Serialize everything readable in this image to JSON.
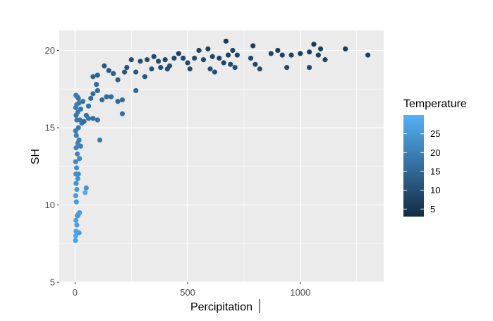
{
  "chart_data": {
    "type": "scatter",
    "title": "",
    "xlabel": "Percipitation",
    "ylabel": "SH",
    "xlim": [
      -70,
      1370
    ],
    "ylim": [
      5,
      21.3
    ],
    "xticks": [
      0,
      500,
      1000
    ],
    "yticks": [
      5,
      10,
      15,
      20
    ],
    "grid": true,
    "panel_background": "#ebebeb",
    "color_scale": {
      "variable": "Temperature",
      "low_color": "#132b43",
      "high_color": "#56b1f7",
      "min": 3,
      "max": 30,
      "breaks": [
        5,
        10,
        15,
        20,
        25
      ]
    },
    "legend_placement": "right",
    "points": [
      {
        "x": 2,
        "y": 7.7,
        "c": 27
      },
      {
        "x": 3,
        "y": 8.0,
        "c": 28
      },
      {
        "x": 5,
        "y": 8.3,
        "c": 27
      },
      {
        "x": 8,
        "y": 8.7,
        "c": 26
      },
      {
        "x": 4,
        "y": 9.0,
        "c": 27
      },
      {
        "x": 10,
        "y": 9.3,
        "c": 26
      },
      {
        "x": 15,
        "y": 9.4,
        "c": 27
      },
      {
        "x": 20,
        "y": 9.5,
        "c": 26
      },
      {
        "x": 12,
        "y": 9.3,
        "c": 25
      },
      {
        "x": 18,
        "y": 8.2,
        "c": 26
      },
      {
        "x": 6,
        "y": 10.2,
        "c": 25
      },
      {
        "x": 3,
        "y": 10.6,
        "c": 26
      },
      {
        "x": 8,
        "y": 11.0,
        "c": 25
      },
      {
        "x": 45,
        "y": 10.8,
        "c": 29
      },
      {
        "x": 50,
        "y": 11.1,
        "c": 24
      },
      {
        "x": 5,
        "y": 11.4,
        "c": 24
      },
      {
        "x": 12,
        "y": 11.7,
        "c": 24
      },
      {
        "x": 4,
        "y": 12.0,
        "c": 23
      },
      {
        "x": 15,
        "y": 12.0,
        "c": 23
      },
      {
        "x": 7,
        "y": 12.4,
        "c": 23
      },
      {
        "x": 3,
        "y": 12.8,
        "c": 22
      },
      {
        "x": 20,
        "y": 13.0,
        "c": 22
      },
      {
        "x": 10,
        "y": 13.3,
        "c": 21
      },
      {
        "x": 5,
        "y": 13.7,
        "c": 21
      },
      {
        "x": 25,
        "y": 13.8,
        "c": 20
      },
      {
        "x": 12,
        "y": 14.0,
        "c": 21
      },
      {
        "x": 18,
        "y": 14.2,
        "c": 20
      },
      {
        "x": 6,
        "y": 14.5,
        "c": 20
      },
      {
        "x": 3,
        "y": 14.8,
        "c": 19
      },
      {
        "x": 15,
        "y": 15.0,
        "c": 19
      },
      {
        "x": 30,
        "y": 15.3,
        "c": 18
      },
      {
        "x": 8,
        "y": 15.5,
        "c": 19
      },
      {
        "x": 22,
        "y": 15.5,
        "c": 18
      },
      {
        "x": 40,
        "y": 15.4,
        "c": 17
      },
      {
        "x": 5,
        "y": 15.8,
        "c": 18
      },
      {
        "x": 12,
        "y": 16.0,
        "c": 19
      },
      {
        "x": 25,
        "y": 16.2,
        "c": 18
      },
      {
        "x": 3,
        "y": 16.3,
        "c": 19
      },
      {
        "x": 8,
        "y": 16.5,
        "c": 20
      },
      {
        "x": 18,
        "y": 16.6,
        "c": 19
      },
      {
        "x": 35,
        "y": 16.7,
        "c": 18
      },
      {
        "x": 50,
        "y": 15.8,
        "c": 17
      },
      {
        "x": 60,
        "y": 15.6,
        "c": 18
      },
      {
        "x": 80,
        "y": 15.6,
        "c": 17
      },
      {
        "x": 100,
        "y": 15.5,
        "c": 17
      },
      {
        "x": 110,
        "y": 14.2,
        "c": 19
      },
      {
        "x": 10,
        "y": 17.0,
        "c": 19
      },
      {
        "x": 15,
        "y": 16.9,
        "c": 18
      },
      {
        "x": 4,
        "y": 17.1,
        "c": 19
      },
      {
        "x": 60,
        "y": 16.4,
        "c": 17
      },
      {
        "x": 70,
        "y": 16.9,
        "c": 16
      },
      {
        "x": 80,
        "y": 17.2,
        "c": 16
      },
      {
        "x": 100,
        "y": 17.4,
        "c": 15
      },
      {
        "x": 95,
        "y": 17.8,
        "c": 15
      },
      {
        "x": 80,
        "y": 18.3,
        "c": 14
      },
      {
        "x": 100,
        "y": 18.4,
        "c": 14
      },
      {
        "x": 120,
        "y": 16.8,
        "c": 16
      },
      {
        "x": 140,
        "y": 17.0,
        "c": 16
      },
      {
        "x": 160,
        "y": 17.0,
        "c": 16
      },
      {
        "x": 190,
        "y": 16.7,
        "c": 15
      },
      {
        "x": 210,
        "y": 16.8,
        "c": 16
      },
      {
        "x": 210,
        "y": 15.9,
        "c": 17
      },
      {
        "x": 130,
        "y": 19.0,
        "c": 12
      },
      {
        "x": 150,
        "y": 18.7,
        "c": 12
      },
      {
        "x": 170,
        "y": 18.5,
        "c": 13
      },
      {
        "x": 190,
        "y": 18.1,
        "c": 13
      },
      {
        "x": 220,
        "y": 18.6,
        "c": 12
      },
      {
        "x": 230,
        "y": 18.9,
        "c": 11
      },
      {
        "x": 250,
        "y": 19.4,
        "c": 10
      },
      {
        "x": 270,
        "y": 18.6,
        "c": 12
      },
      {
        "x": 270,
        "y": 17.4,
        "c": 15
      },
      {
        "x": 290,
        "y": 19.3,
        "c": 10
      },
      {
        "x": 310,
        "y": 18.3,
        "c": 12
      },
      {
        "x": 320,
        "y": 19.4,
        "c": 10
      },
      {
        "x": 340,
        "y": 18.8,
        "c": 11
      },
      {
        "x": 350,
        "y": 19.6,
        "c": 9
      },
      {
        "x": 370,
        "y": 19.3,
        "c": 9
      },
      {
        "x": 380,
        "y": 18.9,
        "c": 10
      },
      {
        "x": 400,
        "y": 19.4,
        "c": 9
      },
      {
        "x": 410,
        "y": 18.8,
        "c": 10
      },
      {
        "x": 420,
        "y": 19.0,
        "c": 10
      },
      {
        "x": 440,
        "y": 19.5,
        "c": 9
      },
      {
        "x": 460,
        "y": 19.8,
        "c": 8
      },
      {
        "x": 480,
        "y": 19.5,
        "c": 9
      },
      {
        "x": 500,
        "y": 19.2,
        "c": 9
      },
      {
        "x": 510,
        "y": 18.8,
        "c": 10
      },
      {
        "x": 530,
        "y": 19.5,
        "c": 9
      },
      {
        "x": 550,
        "y": 20.0,
        "c": 8
      },
      {
        "x": 570,
        "y": 19.4,
        "c": 9
      },
      {
        "x": 590,
        "y": 20.1,
        "c": 8
      },
      {
        "x": 600,
        "y": 18.8,
        "c": 10
      },
      {
        "x": 610,
        "y": 19.6,
        "c": 9
      },
      {
        "x": 620,
        "y": 18.6,
        "c": 10
      },
      {
        "x": 640,
        "y": 19.5,
        "c": 8
      },
      {
        "x": 660,
        "y": 19.2,
        "c": 8
      },
      {
        "x": 670,
        "y": 20.6,
        "c": 6
      },
      {
        "x": 680,
        "y": 19.7,
        "c": 7
      },
      {
        "x": 690,
        "y": 19.1,
        "c": 9
      },
      {
        "x": 700,
        "y": 20.0,
        "c": 8
      },
      {
        "x": 710,
        "y": 18.9,
        "c": 10
      },
      {
        "x": 720,
        "y": 19.7,
        "c": 8
      },
      {
        "x": 780,
        "y": 19.5,
        "c": 9
      },
      {
        "x": 790,
        "y": 20.3,
        "c": 7
      },
      {
        "x": 800,
        "y": 19.1,
        "c": 9
      },
      {
        "x": 820,
        "y": 18.8,
        "c": 10
      },
      {
        "x": 870,
        "y": 19.8,
        "c": 8
      },
      {
        "x": 900,
        "y": 20.0,
        "c": 7
      },
      {
        "x": 920,
        "y": 19.7,
        "c": 8
      },
      {
        "x": 940,
        "y": 18.9,
        "c": 9
      },
      {
        "x": 960,
        "y": 19.7,
        "c": 8
      },
      {
        "x": 1000,
        "y": 19.8,
        "c": 7
      },
      {
        "x": 1040,
        "y": 19.9,
        "c": 7
      },
      {
        "x": 1040,
        "y": 18.9,
        "c": 9
      },
      {
        "x": 1060,
        "y": 20.4,
        "c": 6
      },
      {
        "x": 1080,
        "y": 19.7,
        "c": 7
      },
      {
        "x": 1090,
        "y": 20.1,
        "c": 7
      },
      {
        "x": 1110,
        "y": 19.4,
        "c": 8
      },
      {
        "x": 1200,
        "y": 20.1,
        "c": 6
      },
      {
        "x": 1300,
        "y": 19.7,
        "c": 7
      }
    ]
  }
}
